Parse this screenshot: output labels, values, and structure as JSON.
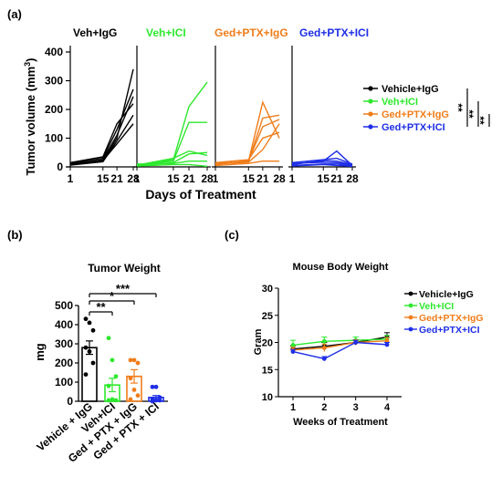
{
  "colors": {
    "veh_igg": "#000000",
    "veh_ici": "#2ee82e",
    "ged_igg": "#f07d1a",
    "ged_ici": "#1f2ee6"
  },
  "chart_data": [
    {
      "panel": "(a)",
      "type": "line",
      "ylabel": "Tumor volume (mm³)",
      "ylabel_main": "Tumor volume (mm",
      "ylabel_sup": "3",
      "ylabel_close": ")",
      "xlabel": "Days of Treatment",
      "x": [
        1,
        15,
        21,
        28
      ],
      "x_ticks": [
        "1",
        "15",
        "21",
        "28"
      ],
      "ylim": [
        0,
        400
      ],
      "y_ticks": [
        "0",
        "100",
        "200",
        "300",
        "400"
      ],
      "groups": [
        {
          "name": "Veh+IgG",
          "color_key": "veh_igg",
          "mice": [
            [
              10,
              20,
              100,
              340
            ],
            [
              12,
              30,
              130,
              270
            ],
            [
              8,
              25,
              110,
              245
            ],
            [
              15,
              35,
              150,
              220
            ],
            [
              6,
              18,
              90,
              180
            ],
            [
              10,
              22,
              80,
              150
            ]
          ]
        },
        {
          "name": "Veh+ICI",
          "color_key": "veh_ici",
          "mice": [
            [
              5,
              25,
              210,
              295
            ],
            [
              8,
              20,
              155,
              155
            ],
            [
              6,
              30,
              55,
              40
            ],
            [
              4,
              15,
              45,
              50
            ],
            [
              10,
              12,
              20,
              20
            ],
            [
              3,
              8,
              8,
              2
            ]
          ]
        },
        {
          "name": "Ged+PTX+IgG",
          "color_key": "ged_igg",
          "mice": [
            [
              10,
              20,
              225,
              100
            ],
            [
              12,
              18,
              170,
              180
            ],
            [
              8,
              22,
              140,
              165
            ],
            [
              15,
              25,
              100,
              120
            ],
            [
              10,
              16,
              60,
              150
            ],
            [
              5,
              12,
              20,
              20
            ]
          ]
        },
        {
          "name": "Ged+PTX+ICI",
          "color_key": "ged_ici",
          "mice": [
            [
              10,
              20,
              55,
              5
            ],
            [
              15,
              25,
              30,
              10
            ],
            [
              8,
              22,
              20,
              8
            ],
            [
              12,
              16,
              15,
              5
            ],
            [
              5,
              10,
              10,
              3
            ],
            [
              3,
              8,
              5,
              2
            ]
          ]
        }
      ],
      "legend": [
        {
          "label": "Vehicle+IgG",
          "color_key": "veh_igg"
        },
        {
          "label": "Veh+ICI",
          "color_key": "veh_ici"
        },
        {
          "label": "Ged+PTX+IgG",
          "color_key": "ged_igg"
        },
        {
          "label": "Ged+PTX+ICI",
          "color_key": "ged_ici"
        }
      ],
      "significance": [
        "**",
        "**",
        "**"
      ]
    },
    {
      "panel": "(b)",
      "type": "bar",
      "title": "Tumor Weight",
      "ylabel": "mg",
      "ylim": [
        0,
        500
      ],
      "y_ticks": [
        "0",
        "100",
        "200",
        "300",
        "400",
        "500"
      ],
      "categories": [
        "Vehicle + IgG",
        "Veh+ICI",
        "Ged + PTX + IgG",
        "Ged + PTX + ICI"
      ],
      "color_keys": [
        "veh_igg",
        "veh_ici",
        "ged_igg",
        "ged_ici"
      ],
      "means": [
        280,
        85,
        130,
        20
      ],
      "sem": [
        35,
        35,
        35,
        10
      ],
      "points": [
        [
          430,
          410,
          370,
          280,
          260,
          200,
          140
        ],
        [
          330,
          215,
          130,
          80,
          10,
          5,
          5
        ],
        [
          215,
          215,
          200,
          120,
          60,
          30,
          10
        ],
        [
          75,
          75,
          20,
          10,
          5,
          5,
          0
        ]
      ],
      "significance": [
        {
          "label": "***",
          "from": 0,
          "to": 3
        },
        {
          "label": "*",
          "from": 0,
          "to": 2
        },
        {
          "label": "**",
          "from": 0,
          "to": 1
        }
      ]
    },
    {
      "panel": "(c)",
      "type": "line",
      "title": "Mouse Body Weight",
      "ylabel": "Gram",
      "xlabel": "Weeks of Treatment",
      "x": [
        1,
        2,
        3,
        4
      ],
      "x_ticks": [
        "1",
        "2",
        "3",
        "4"
      ],
      "ylim": [
        10,
        30
      ],
      "y_ticks": [
        "10",
        "15",
        "20",
        "25",
        "30"
      ],
      "series": [
        {
          "name": "Vehicle+IgG",
          "color_key": "veh_igg",
          "values": [
            18.8,
            19.3,
            20.0,
            21.0
          ],
          "err": [
            0.6,
            0.7,
            0.5,
            0.8
          ]
        },
        {
          "name": "Veh+ICI",
          "color_key": "veh_ici",
          "values": [
            19.5,
            20.2,
            20.4,
            20.6
          ],
          "err": [
            0.9,
            0.8,
            0.6,
            0.7
          ]
        },
        {
          "name": "Ged+PTX+IgG",
          "color_key": "ged_igg",
          "values": [
            18.6,
            19.0,
            20.0,
            20.3
          ],
          "err": [
            0.5,
            0.7,
            0.5,
            0.6
          ]
        },
        {
          "name": "Ged+PTX+ICI",
          "color_key": "ged_ici",
          "values": [
            18.3,
            17.0,
            20.0,
            19.6
          ],
          "err": [
            0.4,
            0.4,
            0.4,
            0.4
          ]
        }
      ]
    }
  ]
}
